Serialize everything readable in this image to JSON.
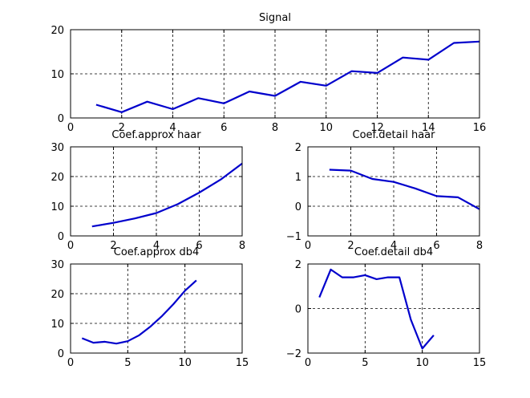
{
  "chart_data": [
    {
      "type": "line",
      "title": "Signal",
      "xlim": [
        0,
        16
      ],
      "ylim": [
        0,
        20
      ],
      "xticks": [
        0,
        2,
        4,
        6,
        8,
        10,
        12,
        14,
        16
      ],
      "yticks": [
        0,
        10,
        20
      ],
      "grid": true,
      "color": "#0000cc",
      "x": [
        1,
        2,
        3,
        4,
        5,
        6,
        7,
        8,
        9,
        10,
        11,
        12,
        13,
        14,
        15,
        16
      ],
      "y": [
        3.0,
        1.3,
        3.7,
        2.0,
        4.5,
        3.3,
        6.0,
        5.0,
        8.2,
        7.3,
        10.6,
        10.2,
        13.7,
        13.2,
        17.0,
        17.3
      ]
    },
    {
      "type": "line",
      "title": "Coef.approx haar",
      "xlim": [
        0,
        8
      ],
      "ylim": [
        0,
        30
      ],
      "xticks": [
        0,
        2,
        4,
        6,
        8
      ],
      "yticks": [
        0,
        10,
        20,
        30
      ],
      "grid": true,
      "color": "#0000cc",
      "x": [
        1,
        2,
        3,
        4,
        5,
        6,
        7,
        8
      ],
      "y": [
        3.2,
        4.4,
        5.9,
        7.7,
        10.7,
        14.6,
        19.0,
        24.4
      ]
    },
    {
      "type": "line",
      "title": "Coef.detail haar",
      "xlim": [
        0,
        8
      ],
      "ylim": [
        -1,
        2
      ],
      "xticks": [
        0,
        2,
        4,
        6,
        8
      ],
      "yticks": [
        -1,
        0,
        1,
        2
      ],
      "grid": true,
      "color": "#0000cc",
      "x": [
        1,
        2,
        3,
        4,
        5,
        6,
        7,
        8
      ],
      "y": [
        1.23,
        1.2,
        0.92,
        0.82,
        0.6,
        0.34,
        0.3,
        -0.1
      ]
    },
    {
      "type": "line",
      "title": "Coef.approx db4",
      "xlim": [
        0,
        15
      ],
      "ylim": [
        0,
        30
      ],
      "xticks": [
        0,
        5,
        10,
        15
      ],
      "yticks": [
        0,
        10,
        20,
        30
      ],
      "grid": true,
      "color": "#0000cc",
      "x": [
        1,
        2,
        3,
        4,
        5,
        6,
        7,
        8,
        9,
        10,
        11
      ],
      "y": [
        5.0,
        3.5,
        3.8,
        3.2,
        4.0,
        6.0,
        9.0,
        12.5,
        16.5,
        21.0,
        24.5
      ]
    },
    {
      "type": "line",
      "title": "Coef.detail db4",
      "xlim": [
        0,
        15
      ],
      "ylim": [
        -2,
        2
      ],
      "xticks": [
        0,
        5,
        10,
        15
      ],
      "yticks": [
        -2,
        0,
        2
      ],
      "grid": true,
      "color": "#0000cc",
      "x": [
        1,
        2,
        3,
        4,
        5,
        6,
        7,
        8,
        9,
        10,
        11
      ],
      "y": [
        0.5,
        1.75,
        1.4,
        1.4,
        1.5,
        1.32,
        1.4,
        1.4,
        -0.5,
        -1.8,
        -1.2
      ]
    }
  ]
}
